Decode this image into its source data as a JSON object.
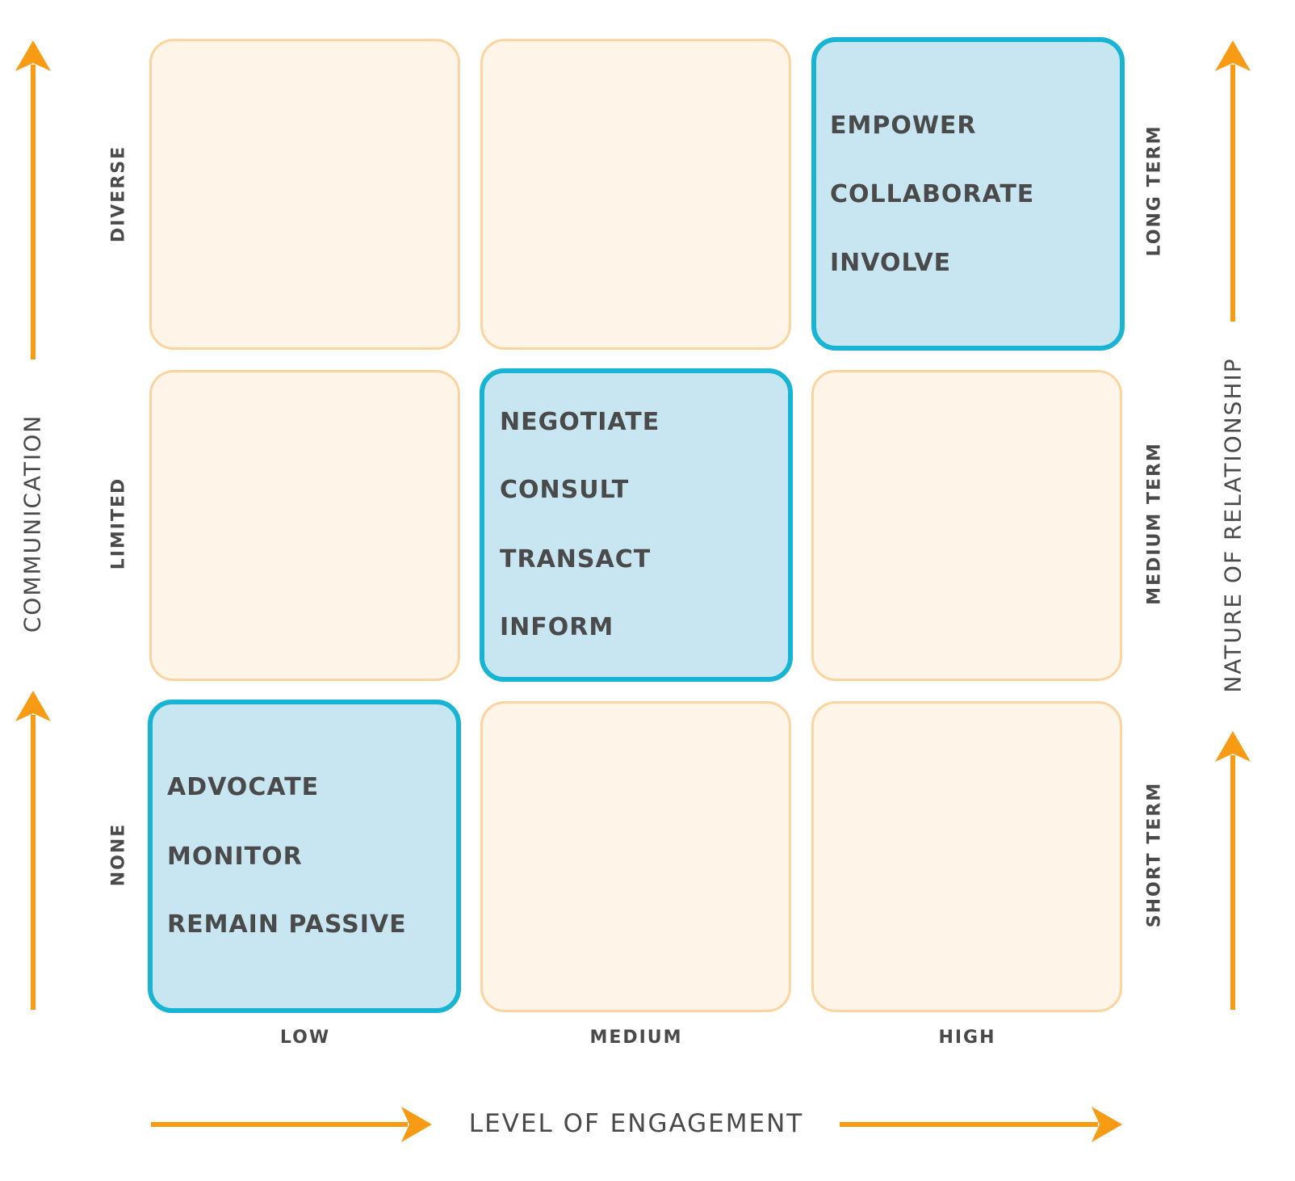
{
  "axes": {
    "x_title": "LEVEL OF ENGAGEMENT",
    "x_levels": [
      "LOW",
      "MEDIUM",
      "HIGH"
    ],
    "left_title": "COMMUNICATION",
    "left_levels": [
      "DIVERSE",
      "LIMITED",
      "NONE"
    ],
    "right_title": "NATURE OF RELATIONSHIP",
    "right_levels": [
      "LONG TERM",
      "MEDIUM TERM",
      "SHORT TERM"
    ]
  },
  "cells": {
    "high_diverse": [
      "EMPOWER",
      "COLLABORATE",
      "INVOLVE"
    ],
    "medium_limited": [
      "NEGOTIATE",
      "CONSULT",
      "TRANSACT",
      "INFORM"
    ],
    "low_none": [
      "ADVOCATE",
      "MONITOR",
      "REMAIN PASSIVE"
    ]
  },
  "colors": {
    "arrow": "#f79a14",
    "cell_fill": "#fff4e8",
    "cell_border": "#fbd4a0",
    "highlight_fill": "#c8e6f2",
    "highlight_border": "#18b4d3",
    "text": "#4a4a4a"
  }
}
